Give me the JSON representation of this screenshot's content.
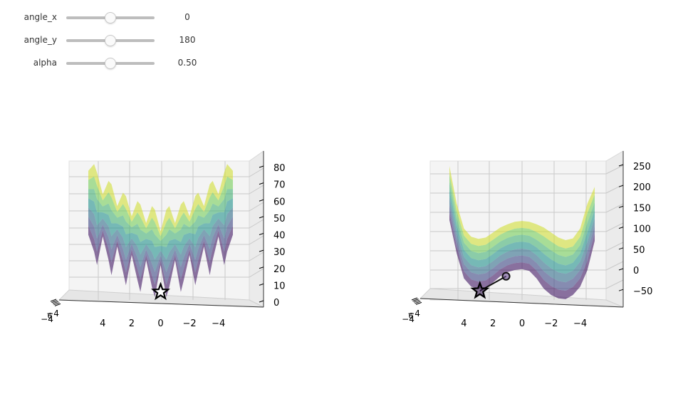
{
  "controls": [
    {
      "label": "angle_x",
      "value": 0,
      "display": "0",
      "min": -180,
      "max": 180
    },
    {
      "label": "angle_y",
      "value": 180,
      "display": "180",
      "min": 0,
      "max": 360
    },
    {
      "label": "alpha",
      "value": 0.5,
      "display": "0.50",
      "min": 0,
      "max": 1
    }
  ],
  "chart_data": [
    {
      "type": "surface",
      "colormap": "viridis",
      "x_ticks": [
        "4",
        "2",
        "0",
        "−2",
        "−4"
      ],
      "y_ticks": [
        "−4"
      ],
      "z_ticks": [
        "0",
        "10",
        "20",
        "30",
        "40",
        "50",
        "60",
        "70",
        "80"
      ],
      "xlim": [
        -5,
        5
      ],
      "zlim": [
        0,
        85
      ],
      "z_cross_section": {
        "x": [
          5.0,
          4.6,
          4.4,
          4.0,
          3.6,
          3.4,
          3.0,
          2.6,
          2.4,
          2.0,
          1.6,
          1.4,
          1.0,
          0.6,
          0.4,
          0.0,
          -0.4,
          -0.6,
          -1.0,
          -1.4,
          -1.6,
          -2.0,
          -2.4,
          -2.6,
          -3.0,
          -3.4,
          -3.6,
          -4.0,
          -4.4,
          -4.6,
          -5.0
        ],
        "z_top": [
          78,
          82,
          77,
          64,
          72,
          70,
          57,
          65,
          63,
          51,
          60,
          58,
          47,
          57,
          55,
          42,
          55,
          57,
          47,
          58,
          60,
          51,
          63,
          65,
          57,
          70,
          72,
          64,
          77,
          82,
          78
        ],
        "z_bottom": [
          40,
          30,
          22,
          39,
          25,
          16,
          33,
          18,
          10,
          28,
          13,
          6,
          25,
          9,
          3,
          22,
          3,
          9,
          25,
          6,
          13,
          28,
          10,
          18,
          33,
          16,
          25,
          39,
          22,
          30,
          40
        ]
      },
      "markers": [
        {
          "symbol": "star",
          "x": 0.0,
          "z": 6
        }
      ]
    },
    {
      "type": "surface",
      "colormap": "viridis",
      "x_ticks": [
        "4",
        "2",
        "0",
        "−2",
        "−4"
      ],
      "y_ticks": [
        "−4"
      ],
      "z_ticks": [
        "−50",
        "0",
        "50",
        "100",
        "150",
        "200",
        "250"
      ],
      "xlim": [
        -5,
        5
      ],
      "zlim": [
        -85,
        265
      ],
      "z_cross_section": {
        "x": [
          5.0,
          4.5,
          4.0,
          3.5,
          3.0,
          2.5,
          2.0,
          1.5,
          1.0,
          0.5,
          0.0,
          -0.5,
          -1.0,
          -1.5,
          -2.0,
          -2.5,
          -3.0,
          -3.5,
          -4.0,
          -4.5,
          -5.0
        ],
        "z_top": [
          250,
          160,
          100,
          80,
          75,
          78,
          90,
          102,
          110,
          116,
          118,
          116,
          110,
          102,
          90,
          78,
          72,
          76,
          100,
          160,
          200
        ],
        "z_bottom": [
          120,
          40,
          -20,
          -40,
          -45,
          -42,
          -30,
          -15,
          -5,
          0,
          2,
          -2,
          -20,
          -45,
          -60,
          -68,
          -70,
          -60,
          -40,
          0,
          70
        ]
      },
      "path": {
        "x": [
          2.9,
          1.1
        ],
        "z": [
          -50,
          -15
        ]
      },
      "markers": [
        {
          "symbol": "star",
          "x": 2.9,
          "z": -50
        },
        {
          "symbol": "circle",
          "x": 1.1,
          "z": -15
        }
      ]
    }
  ]
}
